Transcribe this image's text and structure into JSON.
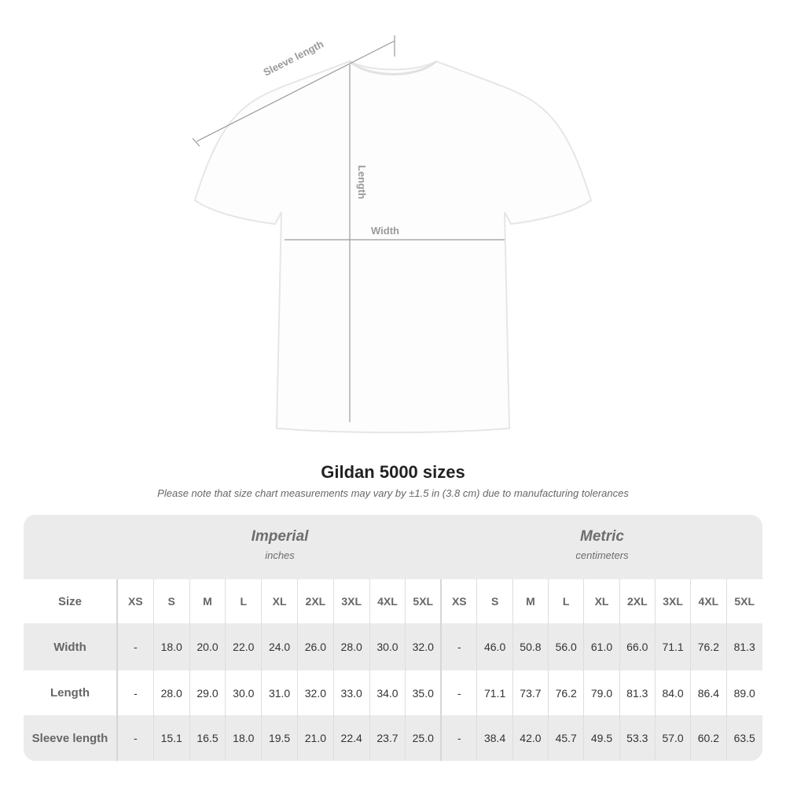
{
  "diagram": {
    "sleeve_label": "Sleeve length",
    "length_label": "Length",
    "width_label": "Width"
  },
  "title": "Gildan 5000 sizes",
  "note": "Please note that size chart measurements may vary by ±1.5 in (3.8 cm) due to manufacturing tolerances",
  "table": {
    "imperial": {
      "title": "Imperial",
      "unit": "inches"
    },
    "metric": {
      "title": "Metric",
      "unit": "centimeters"
    },
    "size_label": "Size",
    "sizes": [
      "XS",
      "S",
      "M",
      "L",
      "XL",
      "2XL",
      "3XL",
      "4XL",
      "5XL"
    ],
    "rows": [
      {
        "label": "Width",
        "imperial": [
          "-",
          "18.0",
          "20.0",
          "22.0",
          "24.0",
          "26.0",
          "28.0",
          "30.0",
          "32.0"
        ],
        "metric": [
          "-",
          "46.0",
          "50.8",
          "56.0",
          "61.0",
          "66.0",
          "71.1",
          "76.2",
          "81.3"
        ]
      },
      {
        "label": "Length",
        "imperial": [
          "-",
          "28.0",
          "29.0",
          "30.0",
          "31.0",
          "32.0",
          "33.0",
          "34.0",
          "35.0"
        ],
        "metric": [
          "-",
          "71.1",
          "73.7",
          "76.2",
          "79.0",
          "81.3",
          "84.0",
          "86.4",
          "89.0"
        ]
      },
      {
        "label": "Sleeve length",
        "imperial": [
          "-",
          "15.1",
          "16.5",
          "18.0",
          "19.5",
          "21.0",
          "22.4",
          "23.7",
          "25.0"
        ],
        "metric": [
          "-",
          "38.4",
          "42.0",
          "45.7",
          "49.5",
          "53.3",
          "57.0",
          "60.2",
          "63.5"
        ]
      }
    ]
  }
}
